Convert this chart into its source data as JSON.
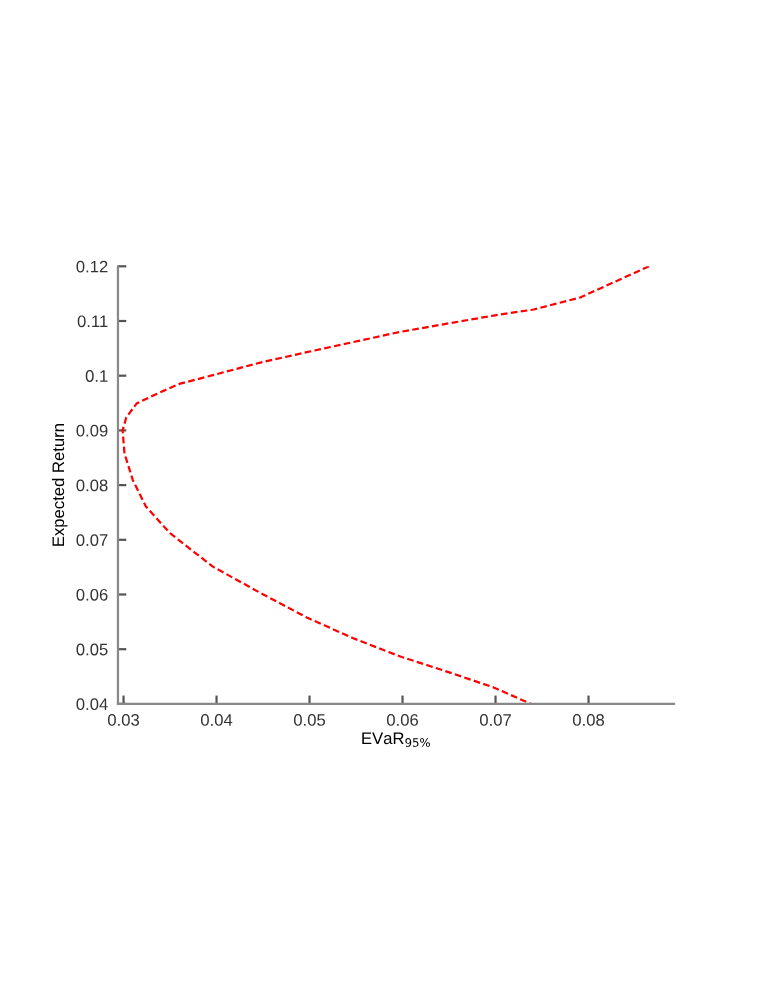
{
  "chart_data": {
    "type": "line",
    "xlabel": "EVaR$_{95%}$",
    "ylabel": "Expected Return",
    "x": [
      0.0865,
      0.0791,
      0.0741,
      0.0698,
      0.0597,
      0.0497,
      0.0447,
      0.0396,
      0.036,
      0.0332,
      0.0314,
      0.0303,
      0.0299,
      0.0301,
      0.031,
      0.0324,
      0.035,
      0.0396,
      0.0447,
      0.0497,
      0.0547,
      0.0597,
      0.0655,
      0.0698,
      0.0738
    ],
    "series": [
      {
        "color": "#ff0000",
        "values": [
          0.12,
          0.1143,
          0.1121,
          0.111,
          0.108,
          0.1043,
          0.1024,
          0.1001,
          0.0985,
          0.0964,
          0.0949,
          0.0924,
          0.09,
          0.0858,
          0.0809,
          0.0761,
          0.0712,
          0.0651,
          0.0603,
          0.0558,
          0.052,
          0.0487,
          0.0455,
          0.043,
          0.04
        ]
      }
    ],
    "xlim": [
      0.0294,
      0.0892
    ],
    "ylim": [
      0.04,
      0.12
    ],
    "xticks": [
      0.03,
      0.04,
      0.05,
      0.06,
      0.07,
      0.08
    ],
    "yticks": [
      0.04,
      0.05,
      0.06,
      0.07,
      0.08,
      0.09,
      0.1,
      0.11,
      0.12
    ],
    "line_style": "dashed",
    "marker": "none",
    "grid": false,
    "legend": false
  }
}
